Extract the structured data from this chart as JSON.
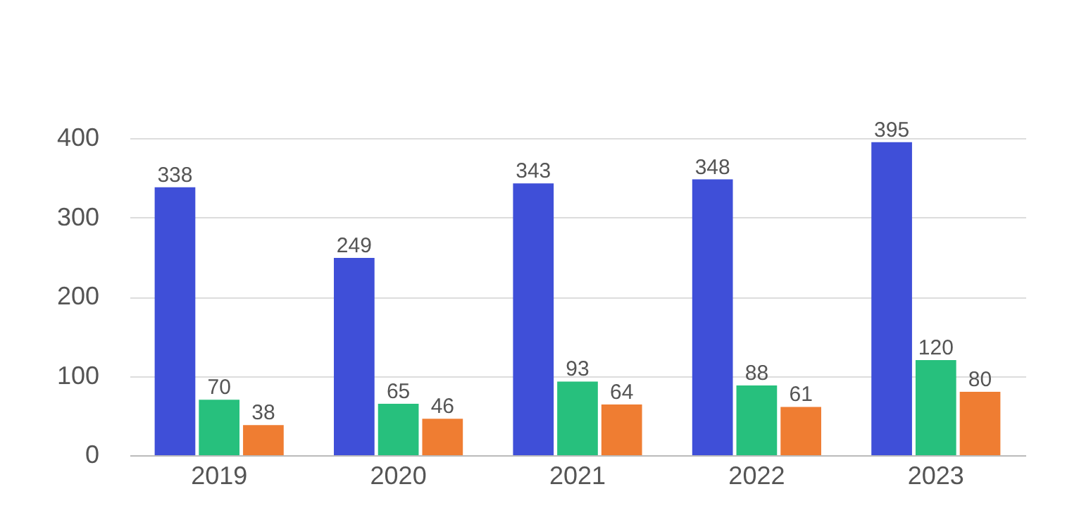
{
  "chart_data": {
    "type": "bar",
    "categories": [
      "2019",
      "2020",
      "2021",
      "2022",
      "2023"
    ],
    "series": [
      {
        "color": "#3f4fd8",
        "values": [
          338,
          249,
          343,
          348,
          395
        ]
      },
      {
        "color": "#27c07d",
        "values": [
          70,
          65,
          93,
          88,
          120
        ]
      },
      {
        "color": "#ef7d32",
        "values": [
          38,
          46,
          64,
          61,
          80
        ]
      }
    ],
    "ylim": [
      0,
      400
    ],
    "yticks": [
      0,
      100,
      200,
      300,
      400
    ],
    "grid": "y",
    "data_labels": true
  }
}
